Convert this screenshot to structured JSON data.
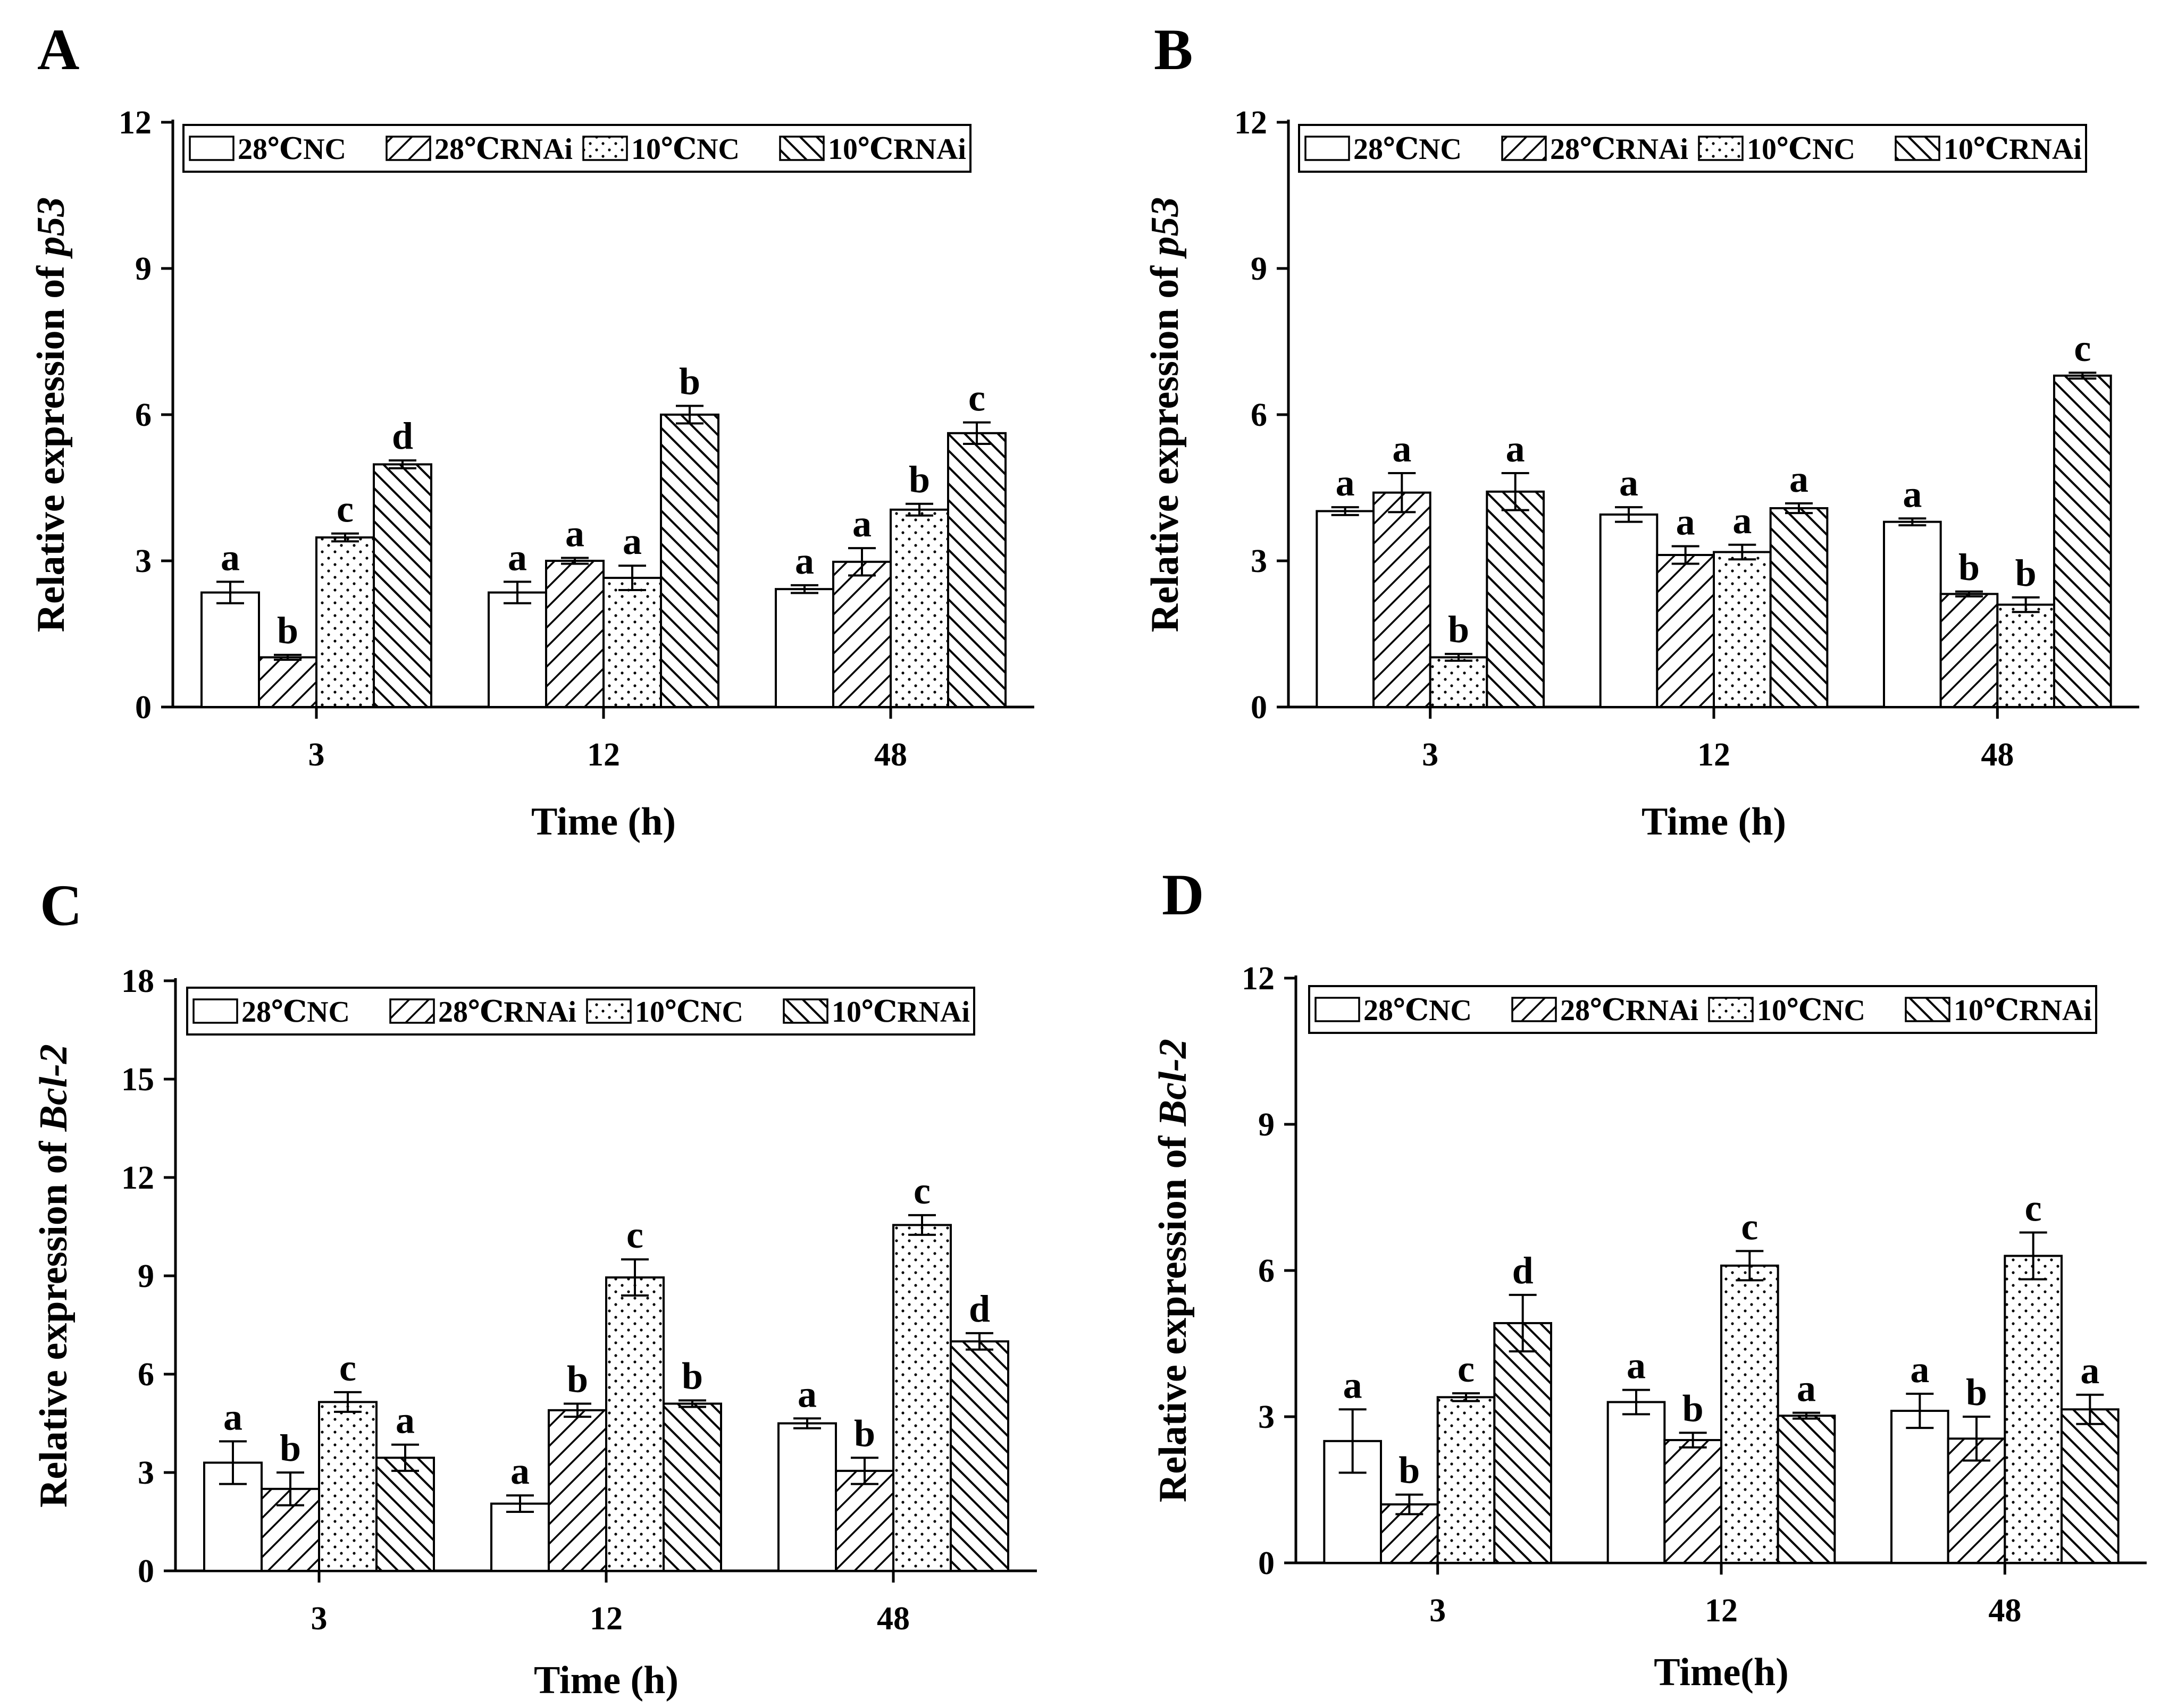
{
  "styles": {
    "colors": {
      "line": "#000000",
      "background": "#ffffff"
    },
    "patterns": [
      "solid-white",
      "diagonal-forward",
      "dots",
      "diagonal-backward"
    ]
  },
  "chart_data": [
    {
      "panel": "A",
      "type": "bar",
      "title": "",
      "xlabel": "Time (h)",
      "ylabel_prefix": "Relative expression of ",
      "ylabel_gene": "p53",
      "ylim": [
        0,
        12
      ],
      "yticks": [
        "0",
        "3",
        "6",
        "9",
        "12"
      ],
      "categories": [
        "3",
        "12",
        "48"
      ],
      "series": [
        {
          "name": "28℃NC",
          "values": [
            2.35,
            2.35,
            2.42
          ],
          "errors": [
            0.22,
            0.22,
            0.08
          ],
          "labels": [
            "a",
            "a",
            "a"
          ]
        },
        {
          "name": "28℃RNAi",
          "values": [
            1.02,
            3.0,
            2.98
          ],
          "errors": [
            0.05,
            0.06,
            0.28
          ],
          "labels": [
            "b",
            "a",
            "a"
          ]
        },
        {
          "name": "10℃NC",
          "values": [
            3.48,
            2.65,
            4.05
          ],
          "errors": [
            0.08,
            0.25,
            0.12
          ],
          "labels": [
            "c",
            "a",
            "b"
          ]
        },
        {
          "name": "10℃RNAi",
          "values": [
            4.98,
            6.0,
            5.62
          ],
          "errors": [
            0.08,
            0.18,
            0.22
          ],
          "labels": [
            "d",
            "b",
            "c"
          ]
        }
      ]
    },
    {
      "panel": "B",
      "type": "bar",
      "title": "",
      "xlabel": "Time (h)",
      "ylabel_prefix": "Relative expression of ",
      "ylabel_gene": "p53",
      "ylim": [
        0,
        12
      ],
      "yticks": [
        "0",
        "3",
        "6",
        "9",
        "12"
      ],
      "categories": [
        "3",
        "12",
        "48"
      ],
      "series": [
        {
          "name": "28℃NC",
          "values": [
            4.02,
            3.95,
            3.8
          ],
          "errors": [
            0.08,
            0.15,
            0.07
          ],
          "labels": [
            "a",
            "a",
            "a"
          ]
        },
        {
          "name": "28℃RNAi",
          "values": [
            4.4,
            3.12,
            2.32
          ],
          "errors": [
            0.4,
            0.18,
            0.05
          ],
          "labels": [
            "a",
            "a",
            "b"
          ]
        },
        {
          "name": "10℃NC",
          "values": [
            1.02,
            3.18,
            2.1
          ],
          "errors": [
            0.07,
            0.15,
            0.15
          ],
          "labels": [
            "b",
            "a",
            "b"
          ]
        },
        {
          "name": "10℃RNAi",
          "values": [
            4.42,
            4.08,
            6.8
          ],
          "errors": [
            0.38,
            0.1,
            0.06
          ],
          "labels": [
            "a",
            "a",
            "c"
          ]
        }
      ]
    },
    {
      "panel": "C",
      "type": "bar",
      "title": "",
      "xlabel": "Time (h)",
      "ylabel_prefix": "Relative expression of ",
      "ylabel_gene": "Bcl-2",
      "ylim": [
        0,
        18
      ],
      "yticks": [
        "0",
        "3",
        "6",
        "9",
        "12",
        "15",
        "18"
      ],
      "categories": [
        "3",
        "12",
        "48"
      ],
      "series": [
        {
          "name": "28℃NC",
          "values": [
            3.3,
            2.05,
            4.5
          ],
          "errors": [
            0.65,
            0.25,
            0.15
          ],
          "labels": [
            "a",
            "a",
            "a"
          ]
        },
        {
          "name": "28℃RNAi",
          "values": [
            2.5,
            4.9,
            3.05
          ],
          "errors": [
            0.5,
            0.2,
            0.4
          ],
          "labels": [
            "b",
            "b",
            "b"
          ]
        },
        {
          "name": "10℃NC",
          "values": [
            5.15,
            8.95,
            10.55
          ],
          "errors": [
            0.3,
            0.55,
            0.3
          ],
          "labels": [
            "c",
            "c",
            "c"
          ]
        },
        {
          "name": "10℃RNAi",
          "values": [
            3.45,
            5.1,
            7.0
          ],
          "errors": [
            0.4,
            0.1,
            0.25
          ],
          "labels": [
            "a",
            "b",
            "d"
          ]
        }
      ]
    },
    {
      "panel": "D",
      "type": "bar",
      "title": "",
      "xlabel": "Time(h)",
      "ylabel_prefix": "Relative expression of ",
      "ylabel_gene": "Bcl-2",
      "ylim": [
        0,
        12
      ],
      "yticks": [
        "0",
        "3",
        "6",
        "9",
        "12"
      ],
      "categories": [
        "3",
        "12",
        "48"
      ],
      "series": [
        {
          "name": "28℃NC",
          "values": [
            2.5,
            3.3,
            3.12
          ],
          "errors": [
            0.65,
            0.25,
            0.35
          ],
          "labels": [
            "a",
            "a",
            "a"
          ]
        },
        {
          "name": "28℃RNAi",
          "values": [
            1.2,
            2.52,
            2.55
          ],
          "errors": [
            0.2,
            0.15,
            0.45
          ],
          "labels": [
            "b",
            "b",
            "b"
          ]
        },
        {
          "name": "10℃NC",
          "values": [
            3.4,
            6.1,
            6.3
          ],
          "errors": [
            0.08,
            0.3,
            0.48
          ],
          "labels": [
            "c",
            "c",
            "c"
          ]
        },
        {
          "name": "10℃RNAi",
          "values": [
            4.92,
            3.02,
            3.15
          ],
          "errors": [
            0.58,
            0.06,
            0.3
          ],
          "labels": [
            "d",
            "a",
            "a"
          ]
        }
      ]
    }
  ]
}
